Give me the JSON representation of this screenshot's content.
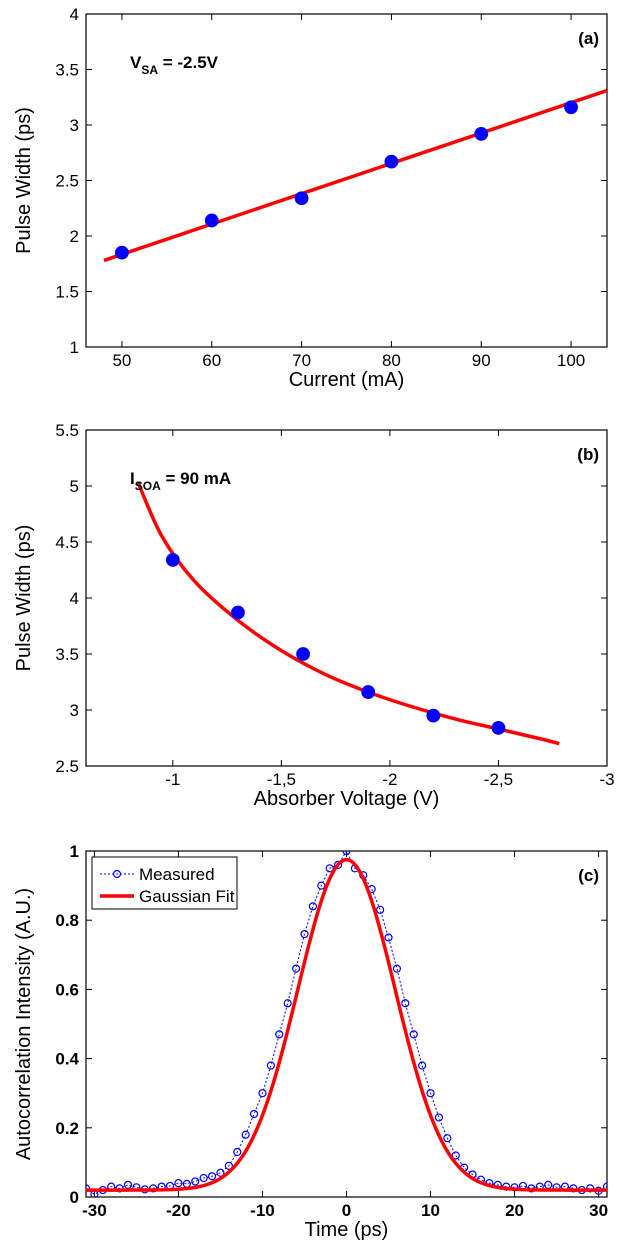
{
  "chart_data": [
    {
      "type": "scatter",
      "panel_label": "(a)",
      "annotation": {
        "main": "V",
        "sub": "SA",
        "rest": " = -2.5V"
      },
      "xlabel": "Current (mA)",
      "ylabel": "Pulse Width (ps)",
      "xlim": [
        46,
        104
      ],
      "ylim": [
        1,
        4
      ],
      "xticks": [
        50,
        60,
        70,
        80,
        90,
        100
      ],
      "xtick_labels": [
        "50",
        "60",
        "70",
        "80",
        "90",
        "100"
      ],
      "yticks": [
        1,
        1.5,
        2,
        2.5,
        3,
        3.5,
        4
      ],
      "ytick_labels": [
        "1",
        "1.5",
        "2",
        "2.5",
        "3",
        "3.5",
        "4"
      ],
      "series": [
        {
          "kind": "points",
          "x": [
            50,
            60,
            70,
            80,
            90,
            100
          ],
          "y": [
            1.85,
            2.14,
            2.34,
            2.67,
            2.92,
            3.16
          ],
          "color": "#0000ff"
        },
        {
          "kind": "line",
          "x": [
            48,
            104
          ],
          "y": [
            1.78,
            3.31
          ],
          "color": "#ff0000"
        }
      ],
      "grid": false
    },
    {
      "type": "scatter",
      "panel_label": "(b)",
      "annotation": {
        "main": "I",
        "sub": "SOA",
        "rest": " = 90 mA"
      },
      "xlabel": "Absorber Voltage (V)",
      "ylabel": "Pulse Width (ps)",
      "xlim": [
        -0.6,
        -3.0
      ],
      "ylim": [
        2.5,
        5.5
      ],
      "xticks": [
        -1,
        -1.5,
        -2,
        -2.5,
        -3
      ],
      "xtick_labels": [
        "-1",
        "-1,5",
        "-2",
        "-2,5",
        "-3"
      ],
      "yticks": [
        2.5,
        3,
        3.5,
        4,
        4.5,
        5,
        5.5
      ],
      "ytick_labels": [
        "2.5",
        "3",
        "3.5",
        "4",
        "4.5",
        "5",
        "5.5"
      ],
      "series": [
        {
          "kind": "points",
          "x": [
            -1.0,
            -1.3,
            -1.6,
            -1.9,
            -2.2,
            -2.5
          ],
          "y": [
            4.34,
            3.87,
            3.5,
            3.16,
            2.95,
            2.84
          ],
          "color": "#0000ff"
        },
        {
          "kind": "line",
          "x": [
            -0.84,
            -0.95,
            -1.1,
            -1.3,
            -1.5,
            -1.7,
            -1.9,
            -2.1,
            -2.3,
            -2.5,
            -2.7,
            -2.78
          ],
          "y": [
            5.03,
            4.55,
            4.15,
            3.8,
            3.53,
            3.32,
            3.16,
            3.03,
            2.92,
            2.83,
            2.74,
            2.7
          ],
          "color": "#ff0000"
        }
      ],
      "grid": false
    },
    {
      "type": "line",
      "panel_label": "(c)",
      "xlabel": "Time (ps)",
      "ylabel": "Autocorrelation Intensity (A.U.)",
      "xlim": [
        -31,
        31
      ],
      "ylim": [
        0,
        1
      ],
      "xticks": [
        -30,
        -20,
        -10,
        0,
        10,
        20,
        30
      ],
      "xtick_labels": [
        "-30",
        "-20",
        "-10",
        "0",
        "10",
        "20",
        "30"
      ],
      "yticks": [
        0,
        0.2,
        0.4,
        0.6,
        0.8,
        1
      ],
      "ytick_labels": [
        "0",
        "0.2",
        "0.4",
        "0.6",
        "0.8",
        "1"
      ],
      "legend": {
        "placement": "top-left",
        "entries": [
          "Measured",
          "Gaussian Fit"
        ]
      },
      "series": [
        {
          "name": "Measured",
          "kind": "dotted-markers",
          "color": "#0000ff",
          "x": [
            -31,
            -30,
            -29,
            -28,
            -27,
            -26,
            -25,
            -24,
            -23,
            -22,
            -21,
            -20,
            -19,
            -18,
            -17,
            -16,
            -15,
            -14,
            -13,
            -12,
            -11,
            -10,
            -9,
            -8,
            -7,
            -6,
            -5,
            -4,
            -3,
            -2,
            -1,
            0,
            1,
            2,
            3,
            4,
            5,
            6,
            7,
            8,
            9,
            10,
            11,
            12,
            13,
            14,
            15,
            16,
            17,
            18,
            19,
            20,
            21,
            22,
            23,
            24,
            25,
            26,
            27,
            28,
            29,
            30,
            31
          ],
          "y": [
            0.025,
            0.008,
            0.02,
            0.03,
            0.025,
            0.035,
            0.028,
            0.022,
            0.025,
            0.03,
            0.032,
            0.04,
            0.038,
            0.045,
            0.055,
            0.06,
            0.07,
            0.09,
            0.13,
            0.18,
            0.24,
            0.3,
            0.38,
            0.47,
            0.56,
            0.66,
            0.76,
            0.84,
            0.9,
            0.95,
            0.96,
            1.0,
            0.95,
            0.93,
            0.89,
            0.83,
            0.75,
            0.66,
            0.56,
            0.47,
            0.38,
            0.3,
            0.23,
            0.17,
            0.12,
            0.085,
            0.065,
            0.05,
            0.04,
            0.035,
            0.03,
            0.028,
            0.032,
            0.025,
            0.03,
            0.035,
            0.028,
            0.03,
            0.025,
            0.02,
            0.025,
            0.018,
            0.03
          ]
        },
        {
          "name": "Gaussian Fit",
          "kind": "gaussian",
          "color": "#ff0000",
          "amplitude": 0.955,
          "center": 0,
          "sigma": 5.8,
          "offset": 0.02
        }
      ],
      "grid": false
    }
  ]
}
